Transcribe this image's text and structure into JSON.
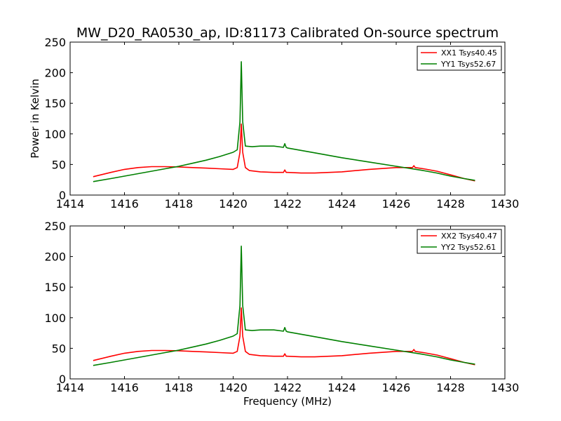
{
  "chart_data": {
    "type": "line",
    "title": "MW_D20_RA0530_ap, ID:81173 Calibrated On-source spectrum",
    "xlabel": "Frequency (MHz)",
    "ylabel": "Power in Kelvin",
    "grid": false,
    "legend_position": "top-right",
    "colors": {
      "XX": "#ff0000",
      "YY": "#008000"
    },
    "panels": [
      {
        "xlim": [
          1414,
          1430
        ],
        "ylim": [
          0,
          250
        ],
        "xticks": [
          "1414",
          "1416",
          "1418",
          "1420",
          "1422",
          "1424",
          "1426",
          "1428",
          "1430"
        ],
        "yticks": [
          "0",
          "50",
          "100",
          "150",
          "200",
          "250"
        ],
        "series": [
          {
            "name": "XX1 Tsys40.45",
            "color": "#ff0000",
            "x": [
              1414.85,
              1415.5,
              1416.0,
              1416.5,
              1417.0,
              1417.5,
              1418.0,
              1418.5,
              1419.0,
              1419.5,
              1420.0,
              1420.15,
              1420.25,
              1420.3,
              1420.35,
              1420.45,
              1420.6,
              1421.0,
              1421.5,
              1421.85,
              1421.9,
              1421.95,
              1422.0,
              1422.5,
              1423.0,
              1424.0,
              1425.0,
              1426.0,
              1426.6,
              1426.65,
              1426.7,
              1427.0,
              1427.5,
              1428.0,
              1428.5,
              1428.9
            ],
            "y": [
              30,
              37,
              42,
              45,
              46.5,
              46.5,
              46,
              45,
              44,
              43,
              42,
              45,
              70,
              116,
              70,
              45,
              40,
              38,
              37,
              37,
              41,
              37,
              37,
              36,
              36,
              38,
              42,
              45,
              45,
              48,
              45,
              43,
              39,
              33,
              27,
              23
            ]
          },
          {
            "name": "YY1 Tsys52.67",
            "color": "#008000",
            "x": [
              1414.85,
              1415.5,
              1416.0,
              1416.5,
              1417.0,
              1417.5,
              1418.0,
              1418.5,
              1419.0,
              1419.5,
              1420.0,
              1420.15,
              1420.25,
              1420.3,
              1420.35,
              1420.45,
              1420.7,
              1421.0,
              1421.5,
              1421.85,
              1421.9,
              1421.95,
              1422.0,
              1423.0,
              1424.0,
              1425.0,
              1426.0,
              1427.0,
              1427.5,
              1428.0,
              1428.5,
              1428.9
            ],
            "y": [
              22,
              27,
              31,
              35,
              39,
              43,
              47,
              52,
              57,
              63,
              70,
              74,
              120,
              218,
              120,
              80,
              79,
              80,
              80,
              78,
              84,
              78,
              77,
              69,
              61,
              54,
              47,
              40,
              36,
              31,
              27,
              24
            ]
          }
        ]
      },
      {
        "xlim": [
          1414,
          1430
        ],
        "ylim": [
          0,
          250
        ],
        "xticks": [
          "1414",
          "1416",
          "1418",
          "1420",
          "1422",
          "1424",
          "1426",
          "1428",
          "1430"
        ],
        "yticks": [
          "0",
          "50",
          "100",
          "150",
          "200",
          "250"
        ],
        "series": [
          {
            "name": "XX2 Tsys40.47",
            "color": "#ff0000",
            "x": [
              1414.85,
              1415.5,
              1416.0,
              1416.5,
              1417.0,
              1417.5,
              1418.0,
              1418.5,
              1419.0,
              1419.5,
              1420.0,
              1420.15,
              1420.25,
              1420.3,
              1420.35,
              1420.45,
              1420.6,
              1421.0,
              1421.5,
              1421.85,
              1421.9,
              1421.95,
              1422.0,
              1422.5,
              1423.0,
              1424.0,
              1425.0,
              1426.0,
              1426.6,
              1426.65,
              1426.7,
              1427.0,
              1427.5,
              1428.0,
              1428.5,
              1428.9
            ],
            "y": [
              30,
              37,
              42,
              45,
              46.5,
              46.5,
              46,
              45,
              44,
              43,
              42,
              45,
              70,
              116,
              70,
              45,
              40,
              38,
              37,
              37,
              41,
              37,
              37,
              36,
              36,
              38,
              42,
              45,
              45,
              48,
              45,
              43,
              39,
              33,
              27,
              23
            ]
          },
          {
            "name": "YY2 Tsys52.61",
            "color": "#008000",
            "x": [
              1414.85,
              1415.5,
              1416.0,
              1416.5,
              1417.0,
              1417.5,
              1418.0,
              1418.5,
              1419.0,
              1419.5,
              1420.0,
              1420.15,
              1420.25,
              1420.3,
              1420.35,
              1420.45,
              1420.7,
              1421.0,
              1421.5,
              1421.85,
              1421.9,
              1421.95,
              1422.0,
              1423.0,
              1424.0,
              1425.0,
              1426.0,
              1427.0,
              1427.5,
              1428.0,
              1428.5,
              1428.9
            ],
            "y": [
              22,
              27,
              31,
              35,
              39,
              43,
              47,
              52,
              57,
              63,
              70,
              74,
              120,
              217,
              120,
              80,
              79,
              80,
              80,
              78,
              84,
              78,
              77,
              69,
              61,
              54,
              47,
              40,
              36,
              31,
              27,
              24
            ]
          }
        ]
      }
    ]
  }
}
